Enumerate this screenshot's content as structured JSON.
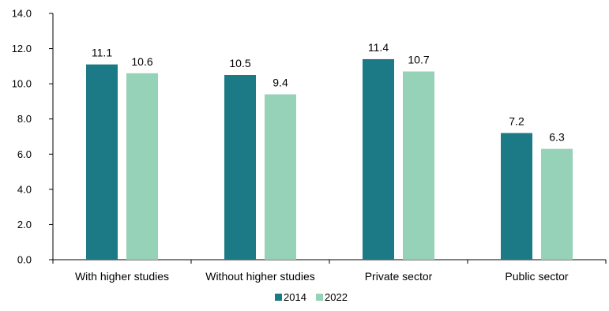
{
  "chart_data": {
    "type": "bar",
    "categories": [
      "With higher studies",
      "Without higher studies",
      "Private sector",
      "Public sector"
    ],
    "series": [
      {
        "name": "2014",
        "values": [
          11.1,
          10.5,
          11.4,
          7.2
        ],
        "color": "#1b7a85"
      },
      {
        "name": "2022",
        "values": [
          10.6,
          9.4,
          10.7,
          6.3
        ],
        "color": "#96d2b7"
      }
    ],
    "value_labels": [
      [
        "11.1",
        "10.5",
        "11.4",
        "7.2"
      ],
      [
        "10.6",
        "9.4",
        "10.7",
        "6.3"
      ]
    ],
    "yticks": [
      "0.0",
      "2.0",
      "4.0",
      "6.0",
      "8.0",
      "10.0",
      "12.0",
      "14.0"
    ],
    "ylim": [
      0,
      14
    ],
    "grid": false,
    "legend_position": "bottom-center"
  }
}
